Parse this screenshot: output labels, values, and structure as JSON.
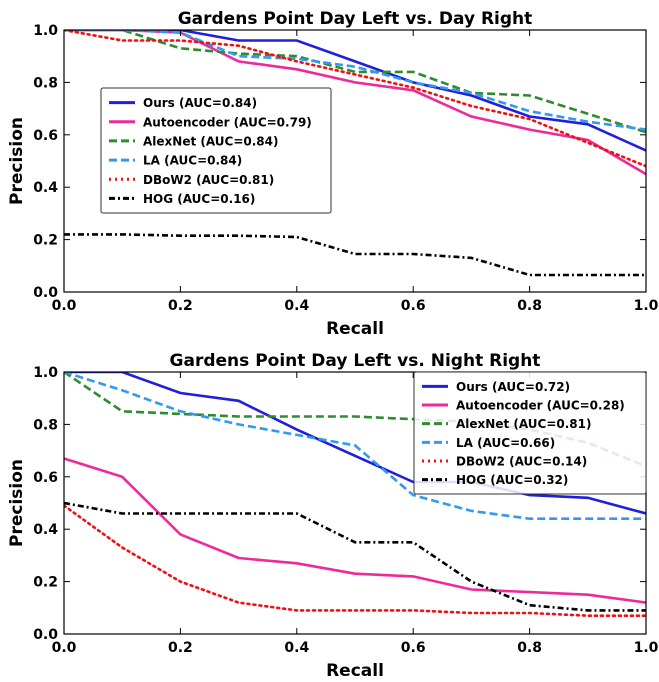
{
  "chart_data": [
    {
      "type": "line",
      "title": "Gardens Point Day Left vs. Day Right",
      "xlabel": "Recall",
      "ylabel": "Precision",
      "xlim": [
        0,
        1
      ],
      "ylim": [
        0,
        1
      ],
      "x_ticks": [
        "0.0",
        "0.2",
        "0.4",
        "0.6",
        "0.8",
        "1.0"
      ],
      "y_ticks": [
        "0.0",
        "0.2",
        "0.4",
        "0.6",
        "0.8",
        "1.0"
      ],
      "legend_placement": "center-left",
      "series": [
        {
          "name": "Ours (AUC=0.84)",
          "color": "#1f1fdd",
          "style": "solid",
          "points": [
            [
              0,
              1.0
            ],
            [
              0.1,
              1.0
            ],
            [
              0.2,
              1.0
            ],
            [
              0.3,
              0.96
            ],
            [
              0.4,
              0.96
            ],
            [
              0.5,
              0.88
            ],
            [
              0.6,
              0.8
            ],
            [
              0.7,
              0.75
            ],
            [
              0.8,
              0.67
            ],
            [
              0.9,
              0.64
            ],
            [
              1.0,
              0.54
            ]
          ]
        },
        {
          "name": "Autoencoder (AUC=0.79)",
          "color": "#ee2a9a",
          "style": "solid",
          "points": [
            [
              0,
              1.0
            ],
            [
              0.1,
              1.0
            ],
            [
              0.2,
              0.99
            ],
            [
              0.3,
              0.88
            ],
            [
              0.4,
              0.85
            ],
            [
              0.5,
              0.8
            ],
            [
              0.6,
              0.77
            ],
            [
              0.7,
              0.67
            ],
            [
              0.8,
              0.62
            ],
            [
              0.9,
              0.58
            ],
            [
              1.0,
              0.45
            ]
          ]
        },
        {
          "name": "AlexNet (AUC=0.84)",
          "color": "#2e8b2e",
          "style": "dashed",
          "points": [
            [
              0,
              1.0
            ],
            [
              0.1,
              1.0
            ],
            [
              0.2,
              0.93
            ],
            [
              0.3,
              0.91
            ],
            [
              0.4,
              0.9
            ],
            [
              0.5,
              0.84
            ],
            [
              0.6,
              0.84
            ],
            [
              0.7,
              0.76
            ],
            [
              0.8,
              0.75
            ],
            [
              0.9,
              0.68
            ],
            [
              1.0,
              0.61
            ]
          ]
        },
        {
          "name": "LA (AUC=0.84)",
          "color": "#3399ee",
          "style": "dashed",
          "points": [
            [
              0,
              1.0
            ],
            [
              0.1,
              1.0
            ],
            [
              0.2,
              0.99
            ],
            [
              0.3,
              0.9
            ],
            [
              0.4,
              0.89
            ],
            [
              0.5,
              0.86
            ],
            [
              0.6,
              0.8
            ],
            [
              0.7,
              0.76
            ],
            [
              0.8,
              0.69
            ],
            [
              0.9,
              0.65
            ],
            [
              1.0,
              0.62
            ]
          ]
        },
        {
          "name": "DBoW2 (AUC=0.81)",
          "color": "#ee1111",
          "style": "dotted",
          "points": [
            [
              0,
              1.0
            ],
            [
              0.1,
              0.96
            ],
            [
              0.2,
              0.96
            ],
            [
              0.3,
              0.94
            ],
            [
              0.4,
              0.88
            ],
            [
              0.5,
              0.83
            ],
            [
              0.6,
              0.78
            ],
            [
              0.7,
              0.71
            ],
            [
              0.8,
              0.66
            ],
            [
              0.9,
              0.57
            ],
            [
              1.0,
              0.48
            ]
          ]
        },
        {
          "name": "HOG (AUC=0.16)",
          "color": "#000000",
          "style": "dashdot",
          "points": [
            [
              0,
              0.22
            ],
            [
              0.1,
              0.22
            ],
            [
              0.2,
              0.215
            ],
            [
              0.3,
              0.215
            ],
            [
              0.4,
              0.21
            ],
            [
              0.5,
              0.145
            ],
            [
              0.6,
              0.145
            ],
            [
              0.7,
              0.13
            ],
            [
              0.8,
              0.065
            ],
            [
              0.9,
              0.065
            ],
            [
              1.0,
              0.065
            ]
          ]
        }
      ]
    },
    {
      "type": "line",
      "title": "Gardens Point Day Left vs. Night Right",
      "xlabel": "Recall",
      "ylabel": "Precision",
      "xlim": [
        0,
        1
      ],
      "ylim": [
        0,
        1
      ],
      "x_ticks": [
        "0.0",
        "0.2",
        "0.4",
        "0.6",
        "0.8",
        "1.0"
      ],
      "y_ticks": [
        "0.0",
        "0.2",
        "0.4",
        "0.6",
        "0.8",
        "1.0"
      ],
      "legend_placement": "top-right",
      "series": [
        {
          "name": "Ours (AUC=0.72)",
          "color": "#1f1fdd",
          "style": "solid",
          "points": [
            [
              0,
              1.0
            ],
            [
              0.1,
              1.0
            ],
            [
              0.2,
              0.92
            ],
            [
              0.3,
              0.89
            ],
            [
              0.4,
              0.78
            ],
            [
              0.5,
              0.68
            ],
            [
              0.6,
              0.58
            ],
            [
              0.7,
              0.58
            ],
            [
              0.8,
              0.53
            ],
            [
              0.9,
              0.52
            ],
            [
              1.0,
              0.46
            ]
          ]
        },
        {
          "name": "Autoencoder (AUC=0.28)",
          "color": "#ee2a9a",
          "style": "solid",
          "points": [
            [
              0,
              0.67
            ],
            [
              0.1,
              0.6
            ],
            [
              0.2,
              0.38
            ],
            [
              0.3,
              0.29
            ],
            [
              0.4,
              0.27
            ],
            [
              0.5,
              0.23
            ],
            [
              0.6,
              0.22
            ],
            [
              0.7,
              0.17
            ],
            [
              0.8,
              0.16
            ],
            [
              0.9,
              0.15
            ],
            [
              1.0,
              0.12
            ]
          ]
        },
        {
          "name": "AlexNet (AUC=0.81)",
          "color": "#2e8b2e",
          "style": "dashed",
          "points": [
            [
              0,
              1.0
            ],
            [
              0.1,
              0.85
            ],
            [
              0.2,
              0.84
            ],
            [
              0.3,
              0.83
            ],
            [
              0.4,
              0.83
            ],
            [
              0.5,
              0.83
            ],
            [
              0.6,
              0.82
            ],
            [
              0.7,
              0.81
            ],
            [
              0.8,
              0.78
            ],
            [
              0.9,
              0.73
            ],
            [
              1.0,
              0.64
            ]
          ]
        },
        {
          "name": "LA (AUC=0.66)",
          "color": "#3399ee",
          "style": "dashed",
          "points": [
            [
              0,
              1.0
            ],
            [
              0.1,
              0.93
            ],
            [
              0.2,
              0.85
            ],
            [
              0.3,
              0.8
            ],
            [
              0.4,
              0.76
            ],
            [
              0.5,
              0.72
            ],
            [
              0.6,
              0.53
            ],
            [
              0.7,
              0.47
            ],
            [
              0.8,
              0.44
            ],
            [
              0.9,
              0.44
            ],
            [
              1.0,
              0.44
            ]
          ]
        },
        {
          "name": "DBoW2 (AUC=0.14)",
          "color": "#ee1111",
          "style": "dotted",
          "points": [
            [
              0,
              0.49
            ],
            [
              0.1,
              0.33
            ],
            [
              0.2,
              0.2
            ],
            [
              0.3,
              0.12
            ],
            [
              0.4,
              0.09
            ],
            [
              0.5,
              0.09
            ],
            [
              0.6,
              0.09
            ],
            [
              0.7,
              0.08
            ],
            [
              0.8,
              0.08
            ],
            [
              0.9,
              0.07
            ],
            [
              1.0,
              0.07
            ]
          ]
        },
        {
          "name": "HOG (AUC=0.32)",
          "color": "#000000",
          "style": "dashdot",
          "points": [
            [
              0,
              0.5
            ],
            [
              0.1,
              0.46
            ],
            [
              0.2,
              0.46
            ],
            [
              0.3,
              0.46
            ],
            [
              0.4,
              0.46
            ],
            [
              0.5,
              0.35
            ],
            [
              0.6,
              0.35
            ],
            [
              0.7,
              0.2
            ],
            [
              0.8,
              0.11
            ],
            [
              0.9,
              0.09
            ],
            [
              1.0,
              0.09
            ]
          ]
        }
      ]
    }
  ]
}
